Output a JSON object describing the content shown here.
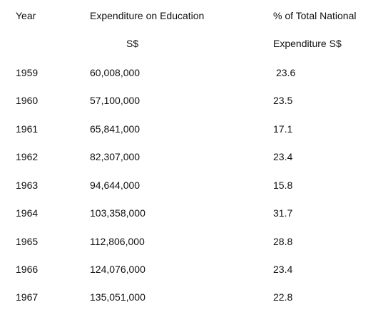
{
  "table": {
    "headers": {
      "year": "Year",
      "expenditure_line1": "Expenditure on Education",
      "expenditure_line2": "S$",
      "percent_line1": "% of Total National",
      "percent_line2": "Expenditure S$"
    },
    "rows": [
      {
        "year": "1959",
        "expenditure": "60,008,000",
        "percent": "23.6"
      },
      {
        "year": "1960",
        "expenditure": "57,100,000",
        "percent": "23.5"
      },
      {
        "year": "1961",
        "expenditure": "65,841,000",
        "percent": "17.1"
      },
      {
        "year": "1962",
        "expenditure": "82,307,000",
        "percent": "23.4"
      },
      {
        "year": "1963",
        "expenditure": "94,644,000",
        "percent": "15.8"
      },
      {
        "year": "1964",
        "expenditure": "103,358,000",
        "percent": "31.7"
      },
      {
        "year": "1965",
        "expenditure": "112,806,000",
        "percent": "28.8"
      },
      {
        "year": "1966",
        "expenditure": "124,076,000",
        "percent": "23.4"
      },
      {
        "year": "1967",
        "expenditure": "135,051,000",
        "percent": "22.8"
      }
    ]
  }
}
